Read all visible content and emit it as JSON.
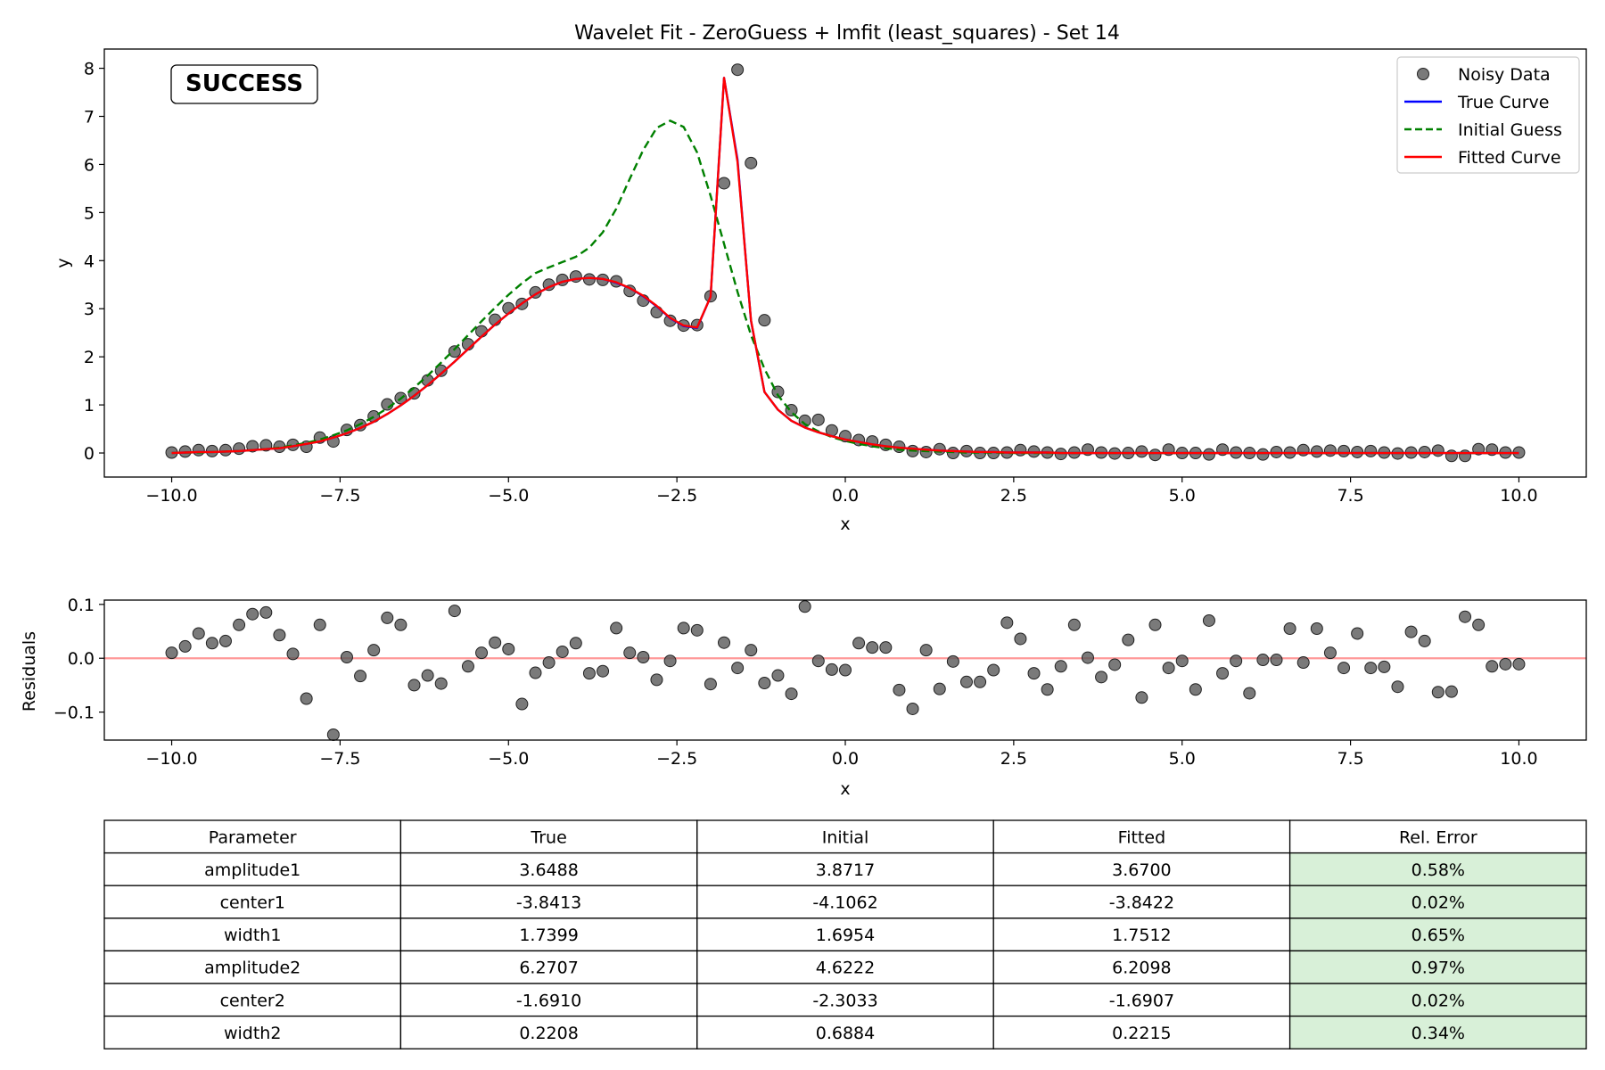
{
  "figure": {
    "title": "Wavelet Fit - ZeroGuess + lmfit (least_squares) - Set 14",
    "status_label": "SUCCESS",
    "colors": {
      "noisy": "#555555",
      "true": "#0000ff",
      "initial": "#008000",
      "fitted": "#ff0000",
      "zero_line": "#ff9999",
      "status": "#008000",
      "good_error_cell": "#d8f0d8"
    }
  },
  "chart_data": [
    {
      "type": "line",
      "xlabel": "x",
      "ylabel": "y",
      "xlim": [
        -11.0,
        11.0
      ],
      "ylim": [
        -0.5,
        8.4
      ],
      "xticks": [
        -10.0,
        -7.5,
        -5.0,
        -2.5,
        0.0,
        2.5,
        5.0,
        7.5,
        10.0
      ],
      "xtick_labels": [
        "−10.0",
        "−7.5",
        "−5.0",
        "−2.5",
        "0.0",
        "2.5",
        "5.0",
        "7.5",
        "10.0"
      ],
      "yticks": [
        0,
        1,
        2,
        3,
        4,
        5,
        6,
        7,
        8
      ],
      "ytick_labels": [
        "0",
        "1",
        "2",
        "3",
        "4",
        "5",
        "6",
        "7",
        "8"
      ],
      "legend": {
        "position": "top-right",
        "entries": [
          {
            "label": "Noisy Data",
            "style": "marker"
          },
          {
            "label": "True Curve",
            "style": "solid"
          },
          {
            "label": "Initial Guess",
            "style": "dashed"
          },
          {
            "label": "Fitted Curve",
            "style": "solid"
          }
        ]
      },
      "x": [
        -10.0,
        -9.8,
        -9.6,
        -9.4,
        -9.2,
        -9.0,
        -8.8,
        -8.6,
        -8.4,
        -8.2,
        -8.0,
        -7.8,
        -7.6,
        -7.4,
        -7.2,
        -7.0,
        -6.8,
        -6.6,
        -6.4,
        -6.2,
        -6.0,
        -5.8,
        -5.6,
        -5.4,
        -5.2,
        -5.0,
        -4.8,
        -4.6,
        -4.4,
        -4.2,
        -4.0,
        -3.8,
        -3.6,
        -3.4,
        -3.2,
        -3.0,
        -2.8,
        -2.6,
        -2.4,
        -2.2,
        -2.0,
        -1.8,
        -1.6,
        -1.4,
        -1.2,
        -1.0,
        -0.8,
        -0.6,
        -0.4,
        -0.2,
        0.0,
        0.2,
        0.4,
        0.6,
        0.8,
        1.0,
        1.2,
        1.4,
        1.6,
        1.8,
        2.0,
        2.2,
        2.4,
        2.6,
        2.8,
        3.0,
        3.2,
        3.4,
        3.6,
        3.8,
        4.0,
        4.2,
        4.4,
        4.6,
        4.8,
        5.0,
        5.2,
        5.4,
        5.6,
        5.8,
        6.0,
        6.2,
        6.4,
        6.6,
        6.8,
        7.0,
        7.2,
        7.4,
        7.6,
        7.8,
        8.0,
        8.2,
        8.4,
        8.6,
        8.8,
        9.0,
        9.2,
        9.4,
        9.6,
        9.8,
        10.0
      ],
      "series": [
        {
          "name": "Noisy Data",
          "kind": "scatter",
          "values": [
            0.01,
            0.03,
            0.06,
            0.04,
            0.06,
            0.09,
            0.14,
            0.16,
            0.13,
            0.17,
            0.13,
            0.32,
            0.24,
            0.48,
            0.58,
            0.76,
            1.01,
            1.14,
            1.24,
            1.51,
            1.71,
            2.11,
            2.26,
            2.53,
            2.77,
            3.01,
            3.1,
            3.34,
            3.5,
            3.6,
            3.67,
            3.61,
            3.6,
            3.57,
            3.37,
            3.17,
            2.93,
            2.75,
            2.65,
            2.66,
            3.26,
            5.61,
            7.97,
            6.03,
            2.76,
            1.27,
            0.89,
            0.67,
            0.69,
            0.47,
            0.35,
            0.27,
            0.24,
            0.17,
            0.13,
            0.04,
            0.02,
            0.08,
            0.0,
            0.04,
            0.0,
            0.0,
            0.01,
            0.06,
            0.03,
            0.01,
            -0.02,
            0.01,
            0.07,
            0.01,
            -0.01,
            0.0,
            0.03,
            -0.04,
            0.07,
            0.0,
            0.0,
            -0.03,
            0.07,
            0.01,
            0.0,
            -0.03,
            0.02,
            0.01,
            0.06,
            0.03,
            0.05,
            0.04,
            0.02,
            0.04,
            0.01,
            -0.01,
            0.01,
            0.02,
            0.05,
            -0.06,
            -0.06,
            0.08,
            0.07,
            0.01,
            0.01
          ]
        },
        {
          "name": "True Curve",
          "kind": "line",
          "values": [
            0.0,
            0.01,
            0.02,
            0.02,
            0.03,
            0.04,
            0.06,
            0.08,
            0.1,
            0.14,
            0.19,
            0.24,
            0.32,
            0.41,
            0.52,
            0.65,
            0.81,
            0.99,
            1.19,
            1.41,
            1.65,
            1.9,
            2.16,
            2.42,
            2.67,
            2.9,
            3.11,
            3.3,
            3.45,
            3.56,
            3.62,
            3.64,
            3.62,
            3.54,
            3.43,
            3.26,
            3.05,
            2.8,
            2.64,
            2.6,
            3.25,
            7.8,
            6.1,
            2.75,
            1.27,
            0.9,
            0.67,
            0.53,
            0.43,
            0.35,
            0.28,
            0.23,
            0.18,
            0.14,
            0.11,
            0.09,
            0.07,
            0.05,
            0.04,
            0.03,
            0.02,
            0.02,
            0.01,
            0.01,
            0.01,
            0.01,
            0.0,
            0.0,
            0.0,
            0.0,
            0.0,
            0.0,
            0.0,
            0.0,
            0.0,
            0.0,
            0.0,
            0.0,
            0.0,
            0.0,
            0.0,
            0.0,
            0.0,
            0.0,
            0.0,
            0.0,
            0.0,
            0.0,
            0.0,
            0.0,
            0.0,
            0.0,
            0.0,
            0.0,
            0.0,
            0.0,
            0.0,
            0.0,
            0.0,
            0.0,
            0.0
          ]
        },
        {
          "name": "Initial Guess",
          "kind": "dashed",
          "values": [
            0.0,
            0.01,
            0.01,
            0.02,
            0.03,
            0.04,
            0.06,
            0.08,
            0.11,
            0.16,
            0.21,
            0.28,
            0.37,
            0.47,
            0.6,
            0.75,
            0.93,
            1.13,
            1.36,
            1.61,
            1.88,
            2.16,
            2.45,
            2.74,
            3.02,
            3.29,
            3.53,
            3.74,
            3.86,
            3.97,
            4.08,
            4.27,
            4.59,
            5.08,
            5.7,
            6.3,
            6.76,
            6.91,
            6.78,
            6.25,
            5.35,
            4.35,
            3.35,
            2.45,
            1.75,
            1.2,
            0.85,
            0.6,
            0.45,
            0.33,
            0.25,
            0.19,
            0.14,
            0.1,
            0.07,
            0.05,
            0.04,
            0.03,
            0.02,
            0.01,
            0.01,
            0.01,
            0.0,
            0.0,
            0.0,
            0.0,
            0.0,
            0.0,
            0.0,
            0.0,
            0.0,
            0.0,
            0.0,
            0.0,
            0.0,
            0.0,
            0.0,
            0.0,
            0.0,
            0.0,
            0.0,
            0.0,
            0.0,
            0.0,
            0.0,
            0.0,
            0.0,
            0.0,
            0.0,
            0.0,
            0.0,
            0.0,
            0.0,
            0.0,
            0.0,
            0.0,
            0.0,
            0.0,
            0.0,
            0.0,
            0.0
          ]
        },
        {
          "name": "Fitted Curve",
          "kind": "line",
          "values": [
            0.0,
            0.01,
            0.02,
            0.02,
            0.03,
            0.04,
            0.06,
            0.08,
            0.1,
            0.14,
            0.19,
            0.24,
            0.32,
            0.41,
            0.52,
            0.65,
            0.81,
            0.99,
            1.19,
            1.41,
            1.65,
            1.9,
            2.16,
            2.42,
            2.67,
            2.9,
            3.11,
            3.3,
            3.45,
            3.56,
            3.62,
            3.64,
            3.62,
            3.55,
            3.43,
            3.27,
            3.06,
            2.81,
            2.65,
            2.61,
            3.25,
            7.8,
            6.05,
            2.76,
            1.27,
            0.9,
            0.67,
            0.53,
            0.43,
            0.35,
            0.28,
            0.23,
            0.18,
            0.14,
            0.11,
            0.09,
            0.07,
            0.05,
            0.04,
            0.03,
            0.02,
            0.02,
            0.01,
            0.01,
            0.01,
            0.01,
            0.0,
            0.0,
            0.0,
            0.0,
            0.0,
            0.0,
            0.0,
            0.0,
            0.0,
            0.0,
            0.0,
            0.0,
            0.0,
            0.0,
            0.0,
            0.0,
            0.0,
            0.0,
            0.0,
            0.0,
            0.0,
            0.0,
            0.0,
            0.0,
            0.0,
            0.0,
            0.0,
            0.0,
            0.0,
            0.0,
            0.0,
            0.0,
            0.0,
            0.0,
            0.0
          ]
        }
      ]
    },
    {
      "type": "scatter",
      "xlabel": "x",
      "ylabel": "Residuals",
      "xlim": [
        -11.0,
        11.0
      ],
      "ylim": [
        -0.152,
        0.108
      ],
      "xticks": [
        -10.0,
        -7.5,
        -5.0,
        -2.5,
        0.0,
        2.5,
        5.0,
        7.5,
        10.0
      ],
      "xtick_labels": [
        "−10.0",
        "−7.5",
        "−5.0",
        "−2.5",
        "0.0",
        "2.5",
        "5.0",
        "7.5",
        "10.0"
      ],
      "yticks": [
        0.1,
        0.0,
        -0.1
      ],
      "ytick_labels": [
        "0.1",
        "0.0",
        "−0.1"
      ],
      "x": [
        -10.0,
        -9.8,
        -9.6,
        -9.4,
        -9.2,
        -9.0,
        -8.8,
        -8.6,
        -8.4,
        -8.2,
        -8.0,
        -7.8,
        -7.6,
        -7.4,
        -7.2,
        -7.0,
        -6.8,
        -6.6,
        -6.4,
        -6.2,
        -6.0,
        -5.8,
        -5.6,
        -5.4,
        -5.2,
        -5.0,
        -4.8,
        -4.6,
        -4.4,
        -4.2,
        -4.0,
        -3.8,
        -3.6,
        -3.4,
        -3.2,
        -3.0,
        -2.8,
        -2.6,
        -2.4,
        -2.2,
        -2.0,
        -1.8,
        -1.6,
        -1.4,
        -1.2,
        -1.0,
        -0.8,
        -0.6,
        -0.4,
        -0.2,
        0.0,
        0.2,
        0.4,
        0.6,
        0.8,
        1.0,
        1.2,
        1.4,
        1.6,
        1.8,
        2.0,
        2.2,
        2.4,
        2.6,
        2.8,
        3.0,
        3.2,
        3.4,
        3.6,
        3.8,
        4.0,
        4.2,
        4.4,
        4.6,
        4.8,
        5.0,
        5.2,
        5.4,
        5.6,
        5.8,
        6.0,
        6.2,
        6.4,
        6.6,
        6.8,
        7.0,
        7.2,
        7.4,
        7.6,
        7.8,
        8.0,
        8.2,
        8.4,
        8.6,
        8.8,
        9.0,
        9.2,
        9.4,
        9.6,
        9.8,
        10.0
      ],
      "series": [
        {
          "name": "Residuals",
          "values": [
            0.01,
            0.022,
            0.046,
            0.028,
            0.032,
            0.062,
            0.082,
            0.085,
            0.043,
            0.008,
            -0.075,
            0.062,
            -0.142,
            0.002,
            -0.033,
            0.015,
            0.075,
            0.062,
            -0.05,
            -0.032,
            -0.047,
            0.088,
            -0.015,
            0.01,
            0.029,
            0.017,
            -0.085,
            -0.027,
            -0.008,
            0.012,
            0.028,
            -0.028,
            -0.024,
            0.056,
            0.01,
            0.002,
            -0.04,
            -0.005,
            0.056,
            0.052,
            -0.048,
            0.029,
            -0.018,
            0.015,
            -0.046,
            -0.032,
            -0.066,
            0.096,
            -0.005,
            -0.021,
            -0.022,
            0.028,
            0.02,
            0.02,
            -0.059,
            -0.094,
            0.015,
            -0.057,
            -0.006,
            -0.044,
            -0.044,
            -0.022,
            0.066,
            0.036,
            -0.028,
            -0.058,
            -0.015,
            0.062,
            0.001,
            -0.035,
            -0.012,
            0.034,
            -0.073,
            0.062,
            -0.018,
            -0.005,
            -0.058,
            0.07,
            -0.028,
            -0.005,
            -0.065,
            -0.003,
            -0.003,
            0.055,
            -0.008,
            0.055,
            0.01,
            -0.018,
            0.046,
            -0.018,
            -0.016,
            -0.053,
            0.049,
            0.032,
            -0.063,
            -0.062,
            0.077,
            0.062,
            -0.015,
            -0.011,
            -0.011
          ]
        }
      ]
    },
    {
      "type": "table",
      "columns": [
        "Parameter",
        "True",
        "Initial",
        "Fitted",
        "Rel. Error"
      ],
      "rows": [
        [
          "amplitude1",
          "3.6488",
          "3.8717",
          "3.6700",
          "0.58%"
        ],
        [
          "center1",
          "-3.8413",
          "-4.1062",
          "-3.8422",
          "0.02%"
        ],
        [
          "width1",
          "1.7399",
          "1.6954",
          "1.7512",
          "0.65%"
        ],
        [
          "amplitude2",
          "6.2707",
          "4.6222",
          "6.2098",
          "0.97%"
        ],
        [
          "center2",
          "-1.6910",
          "-2.3033",
          "-1.6907",
          "0.02%"
        ],
        [
          "width2",
          "0.2208",
          "0.6884",
          "0.2215",
          "0.34%"
        ]
      ]
    }
  ]
}
